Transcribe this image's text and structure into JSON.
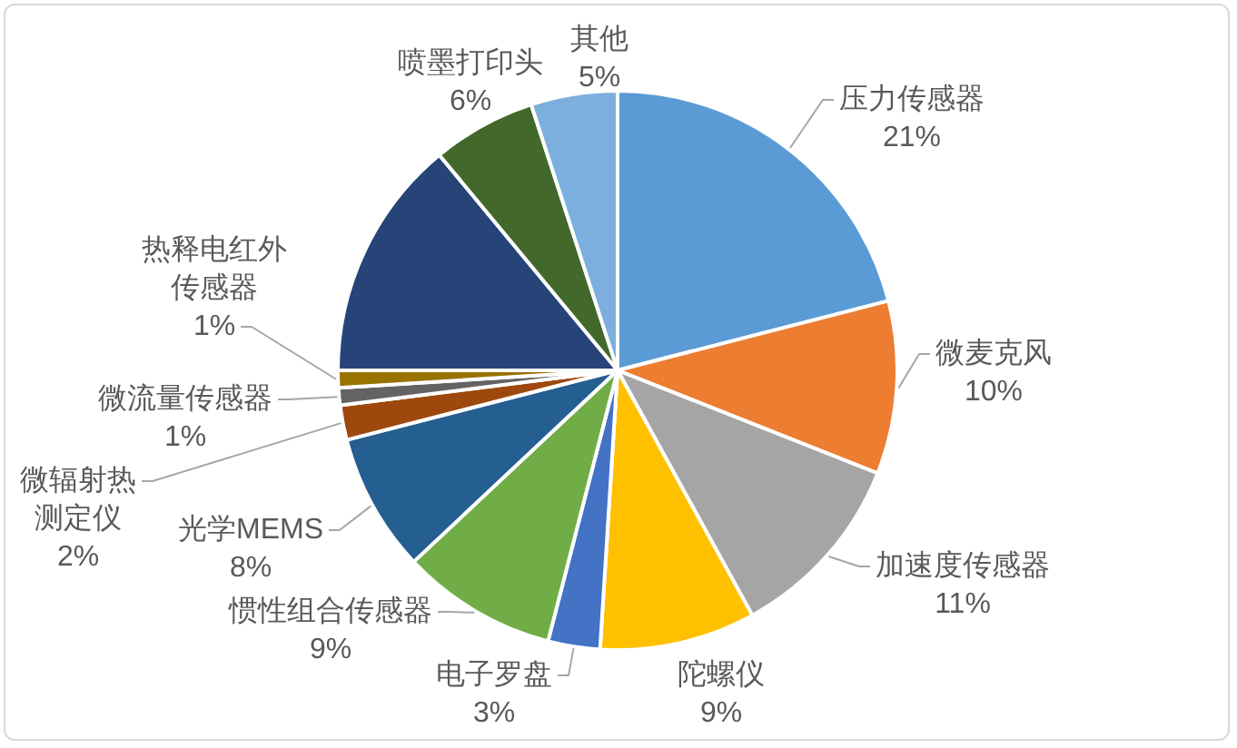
{
  "chart_data": {
    "type": "pie",
    "categories": [
      "压力传感器",
      "微麦克风",
      "加速度传感器",
      "陀螺仪",
      "电子罗盘",
      "惯性组合传感器",
      "光学MEMS",
      "微辐射热测定仪",
      "微流量传感器",
      "热释电红外传感器",
      null,
      "喷墨打印头",
      "其他"
    ],
    "values": [
      21,
      10,
      11,
      9,
      3,
      9,
      8,
      2,
      1,
      1,
      14,
      6,
      5
    ],
    "value_labels": [
      "21%",
      "10%",
      "11%",
      "9%",
      "3%",
      "9%",
      "8%",
      "2%",
      "1%",
      "1%",
      null,
      "6%",
      "5%"
    ],
    "colors": [
      "#5b9bd5",
      "#ed7d31",
      "#a5a5a5",
      "#ffc000",
      "#4472c4",
      "#70ad47",
      "#255e91",
      "#9e480e",
      "#636363",
      "#997300",
      "#264478",
      "#43682b",
      "#7cafdd"
    ]
  }
}
